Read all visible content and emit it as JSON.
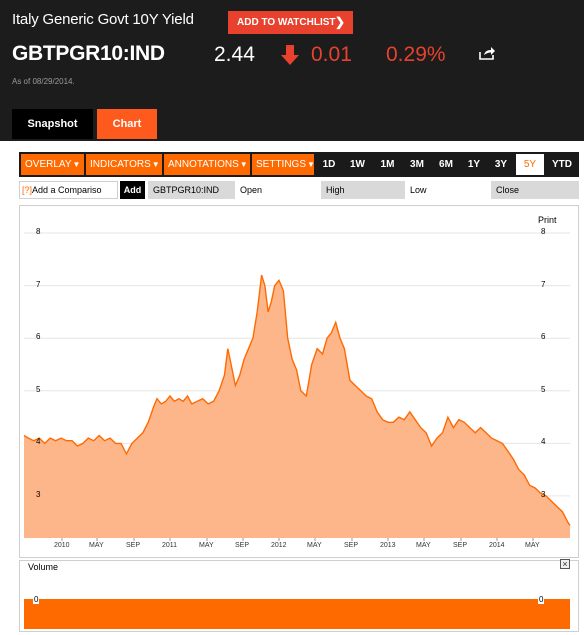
{
  "header": {
    "title": "Italy Generic Govt 10Y Yield",
    "watchlist_label": "ADD TO WATCHLIST",
    "ticker": "GBTPGR10:IND",
    "price": "2.44",
    "change": "0.01",
    "change_pct": "0.29%",
    "as_of": "As of 08/29/2014."
  },
  "tabs": {
    "snapshot": "Snapshot",
    "chart": "Chart"
  },
  "toolbar": {
    "menus": [
      "OVERLAY",
      "INDICATORS",
      "ANNOTATIONS",
      "SETTINGS"
    ],
    "ranges": [
      "1D",
      "1W",
      "1M",
      "3M",
      "6M",
      "1Y",
      "3Y",
      "5Y",
      "YTD"
    ],
    "selected_range": "5Y"
  },
  "legend": {
    "help": "[?]",
    "compare_placeholder": "Add a Compariso",
    "add_label": "Add",
    "symbol": "GBTPGR10:IND",
    "open": "Open",
    "high": "High",
    "low": "Low",
    "close": "Close"
  },
  "chart": {
    "print_label": "Print"
  },
  "colors": {
    "accent": "#ff6a00",
    "negative": "#e8412e",
    "area_fill": "#fdb58a"
  },
  "chart_data": {
    "type": "area",
    "yticks": [
      "3",
      "4",
      "5",
      "6",
      "7",
      "8"
    ],
    "ylim": [
      2.2,
      8.4
    ],
    "xticks": [
      "2010",
      "MAY",
      "SEP",
      "2011",
      "MAY",
      "SEP",
      "2012",
      "MAY",
      "SEP",
      "2013",
      "MAY",
      "SEP",
      "2014",
      "MAY"
    ],
    "xlim": [
      2009.66,
      2014.67
    ],
    "series": [
      {
        "x": [
          2009.66,
          2009.7,
          2009.75,
          2009.8,
          2009.85,
          2009.9,
          2009.95,
          2010.0,
          2010.05,
          2010.1,
          2010.15,
          2010.2,
          2010.25,
          2010.3,
          2010.35,
          2010.4,
          2010.45,
          2010.5,
          2010.55,
          2010.6,
          2010.65,
          2010.7,
          2010.75,
          2010.8,
          2010.85,
          2010.88,
          2010.92,
          2010.96,
          2011.0,
          2011.04,
          2011.08,
          2011.12,
          2011.16,
          2011.2,
          2011.25,
          2011.3,
          2011.35,
          2011.4,
          2011.45,
          2011.5,
          2011.53,
          2011.56,
          2011.6,
          2011.64,
          2011.68,
          2011.72,
          2011.76,
          2011.8,
          2011.84,
          2011.87,
          2011.9,
          2011.93,
          2011.96,
          2012.0,
          2012.04,
          2012.08,
          2012.12,
          2012.16,
          2012.2,
          2012.25,
          2012.3,
          2012.35,
          2012.4,
          2012.44,
          2012.48,
          2012.52,
          2012.56,
          2012.6,
          2012.65,
          2012.7,
          2012.75,
          2012.8,
          2012.85,
          2012.9,
          2012.95,
          2013.0,
          2013.05,
          2013.1,
          2013.15,
          2013.2,
          2013.25,
          2013.3,
          2013.35,
          2013.4,
          2013.45,
          2013.5,
          2013.55,
          2013.6,
          2013.65,
          2013.7,
          2013.75,
          2013.8,
          2013.85,
          2013.9,
          2013.95,
          2014.0,
          2014.05,
          2014.1,
          2014.15,
          2014.2,
          2014.25,
          2014.3,
          2014.35,
          2014.4,
          2014.45,
          2014.5,
          2014.55,
          2014.6,
          2014.65,
          2014.67
        ],
        "y": [
          4.15,
          4.1,
          4.05,
          4.1,
          4.0,
          4.1,
          4.05,
          4.1,
          4.05,
          4.05,
          3.95,
          4.0,
          4.1,
          4.05,
          4.15,
          4.05,
          4.1,
          4.0,
          4.0,
          3.8,
          4.0,
          4.1,
          4.2,
          4.4,
          4.7,
          4.85,
          4.75,
          4.8,
          4.9,
          4.8,
          4.85,
          4.8,
          4.9,
          4.75,
          4.8,
          4.85,
          4.75,
          4.8,
          5.0,
          5.3,
          5.8,
          5.5,
          5.1,
          5.3,
          5.6,
          5.8,
          6.0,
          6.5,
          7.2,
          7.0,
          6.5,
          6.7,
          7.0,
          7.1,
          6.9,
          6.0,
          5.6,
          5.4,
          5.0,
          4.9,
          5.5,
          5.8,
          5.7,
          6.0,
          6.1,
          6.3,
          6.0,
          5.8,
          5.2,
          5.1,
          5.0,
          4.9,
          4.85,
          4.6,
          4.45,
          4.4,
          4.4,
          4.5,
          4.45,
          4.6,
          4.45,
          4.3,
          4.2,
          3.95,
          4.1,
          4.2,
          4.5,
          4.3,
          4.45,
          4.4,
          4.3,
          4.2,
          4.3,
          4.2,
          4.1,
          4.05,
          4.0,
          3.85,
          3.7,
          3.5,
          3.4,
          3.2,
          3.15,
          3.05,
          3.0,
          2.9,
          2.8,
          2.7,
          2.5,
          2.44
        ]
      }
    ]
  },
  "volume": {
    "label": "Volume",
    "close_label": "×",
    "tick": "0",
    "chart_data": {
      "type": "bar",
      "ylim": [
        0,
        1
      ]
    }
  }
}
